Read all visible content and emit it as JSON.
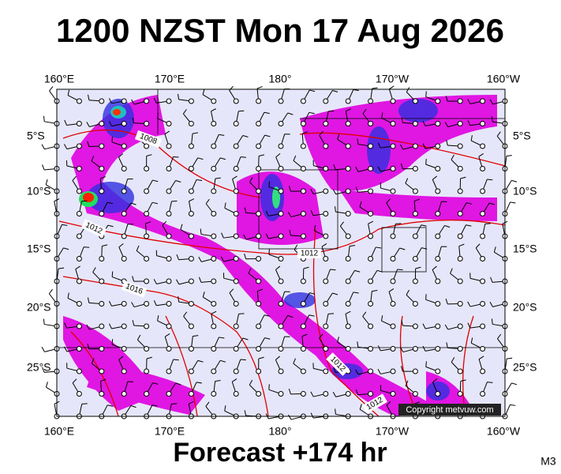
{
  "title": "1200 NZST Mon 17 Aug 2026",
  "top_axis": [
    "160°E",
    "170°E",
    "180°",
    "170°W",
    "160°W"
  ],
  "bottom_axis": [
    "160°E",
    "170°E",
    "180°",
    "170°W",
    "160°W"
  ],
  "left_axis": [
    "5°S",
    "10°S",
    "15°S",
    "20°S",
    "25°S"
  ],
  "right_axis": [
    "5°S",
    "10°S",
    "15°S",
    "20°S",
    "25°S"
  ],
  "isobar_labels": [
    "1008",
    "1012",
    "1016",
    "1012",
    "1012",
    "1012"
  ],
  "copyright": "Copyright metvuw.com",
  "footer": "Forecast +174 hr",
  "model": "M3"
}
